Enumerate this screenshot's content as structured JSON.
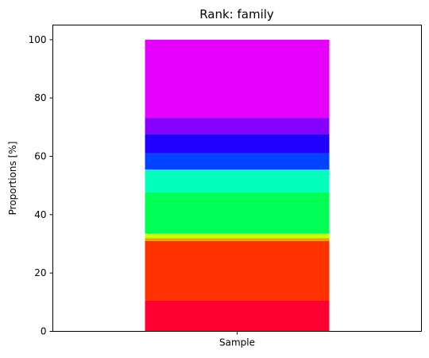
{
  "chart_data": {
    "type": "bar",
    "stacked": true,
    "title": "Rank: family",
    "xlabel": "",
    "ylabel": "Proportions [%]",
    "categories": [
      "Sample"
    ],
    "ylim": [
      0,
      105
    ],
    "yticks": [
      0,
      20,
      40,
      60,
      80,
      100
    ],
    "grid": false,
    "legend": "none",
    "series": [
      {
        "color": "#ff0033",
        "values": [
          10.7
        ]
      },
      {
        "color": "#ff3300",
        "values": [
          20.3
        ]
      },
      {
        "color": "#ff9900",
        "values": [
          1.0
        ]
      },
      {
        "color": "#ccff00",
        "values": [
          1.5
        ]
      },
      {
        "color": "#00ff55",
        "values": [
          14.3
        ]
      },
      {
        "color": "#00ffbb",
        "values": [
          7.7
        ]
      },
      {
        "color": "#0044ff",
        "values": [
          5.6
        ]
      },
      {
        "color": "#2200ff",
        "values": [
          6.6
        ]
      },
      {
        "color": "#8800ff",
        "values": [
          5.5
        ]
      },
      {
        "color": "#e600ff",
        "values": [
          26.8
        ]
      }
    ]
  }
}
